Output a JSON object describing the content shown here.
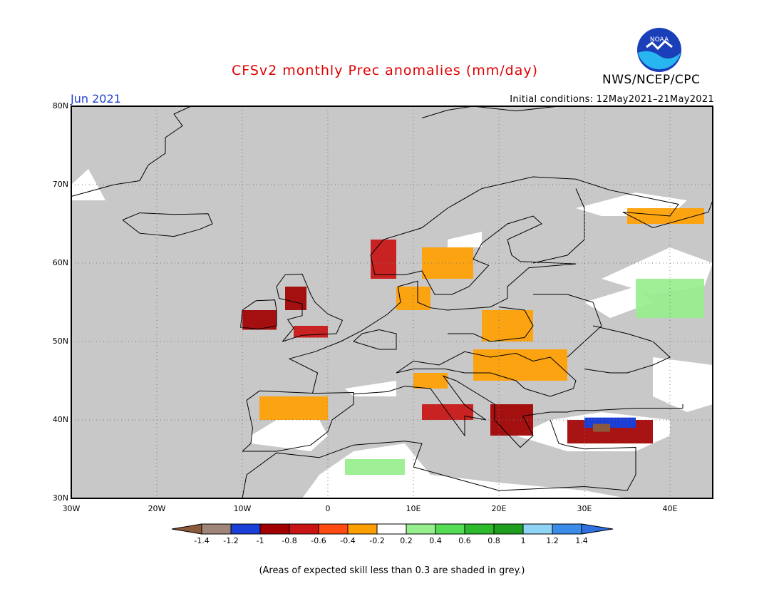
{
  "header": {
    "title": "CFSv2 monthly Prec anomalies (mm/day)",
    "agency": "NWS/NCEP/CPC",
    "month": "Jun 2021",
    "initial_conditions": "Initial conditions: 12May2021–21May2021",
    "logo_text": "NOAA"
  },
  "map": {
    "extent": {
      "lon_min": -30,
      "lon_max": 45,
      "lat_min": 30,
      "lat_max": 80
    },
    "lat_labels": [
      "80N",
      "70N",
      "60N",
      "50N",
      "40N",
      "30N"
    ],
    "lon_labels": [
      "30W",
      "20W",
      "10W",
      "0",
      "10E",
      "20E",
      "30E",
      "40E"
    ],
    "colors": {
      "grey_mask": "#c8c8c8",
      "land_line": "#000000",
      "grid": "#777777"
    },
    "regions": [
      {
        "name": "Ireland",
        "lon": [
          -10,
          -6
        ],
        "lat": [
          51.5,
          54
        ],
        "level": -0.9
      },
      {
        "name": "Northern Britain",
        "lon": [
          -5,
          -2.5
        ],
        "lat": [
          54,
          57
        ],
        "level": -0.9
      },
      {
        "name": "Southern Britain",
        "lon": [
          -4,
          0
        ],
        "lat": [
          50.5,
          52
        ],
        "level": -0.7
      },
      {
        "name": "Southern Norway",
        "lon": [
          5,
          8
        ],
        "lat": [
          58,
          63
        ],
        "level": -0.7
      },
      {
        "name": "Southern Sweden",
        "lon": [
          11,
          17
        ],
        "lat": [
          58,
          62
        ],
        "level": -0.3
      },
      {
        "name": "Denmark",
        "lon": [
          8,
          12
        ],
        "lat": [
          54,
          57
        ],
        "level": -0.3
      },
      {
        "name": "Poland",
        "lon": [
          18,
          24
        ],
        "lat": [
          50,
          54
        ],
        "level": -0.3
      },
      {
        "name": "Hungary-Romania",
        "lon": [
          17,
          28
        ],
        "lat": [
          45,
          49
        ],
        "level": -0.3
      },
      {
        "name": "Northern Italy",
        "lon": [
          10,
          14
        ],
        "lat": [
          44,
          46
        ],
        "level": -0.3
      },
      {
        "name": "Southern Italy",
        "lon": [
          11,
          17
        ],
        "lat": [
          40,
          42
        ],
        "level": -0.7
      },
      {
        "name": "Balkans",
        "lon": [
          19,
          24
        ],
        "lat": [
          38,
          42
        ],
        "level": -0.9
      },
      {
        "name": "Turkey",
        "lon": [
          28,
          38
        ],
        "lat": [
          37,
          40
        ],
        "level": -0.9
      },
      {
        "name": "Northwest Russia",
        "lon": [
          35,
          44
        ],
        "lat": [
          65,
          67
        ],
        "level": -0.3
      },
      {
        "name": "Iberia North",
        "lon": [
          -8,
          0
        ],
        "lat": [
          40,
          43
        ],
        "level": -0.3
      },
      {
        "name": "Russia Central",
        "lon": [
          36,
          44
        ],
        "lat": [
          53,
          58
        ],
        "level": 0.3
      },
      {
        "name": "North Africa West",
        "lon": [
          2,
          9
        ],
        "lat": [
          33,
          35
        ],
        "level": 0.3
      }
    ]
  },
  "colorbar": {
    "labels": [
      "-1.4",
      "-1.2",
      "-1",
      "-0.8",
      "-0.6",
      "-0.4",
      "-0.2",
      "0.2",
      "0.4",
      "0.6",
      "0.8",
      "1",
      "1.2",
      "1.4"
    ],
    "colors": [
      "#8b5a3c",
      "#a0857a",
      "#1b3fd6",
      "#a10000",
      "#c81414",
      "#ff4a12",
      "#ffa000",
      "#ffffff",
      "#96ee8c",
      "#55dd55",
      "#2cba2c",
      "#1e9e1e",
      "#8fd3f5",
      "#3b8be8",
      "#2f6fe0"
    ]
  },
  "footer": {
    "note": "(Areas of expected skill less than 0.3 are shaded in grey.)"
  }
}
